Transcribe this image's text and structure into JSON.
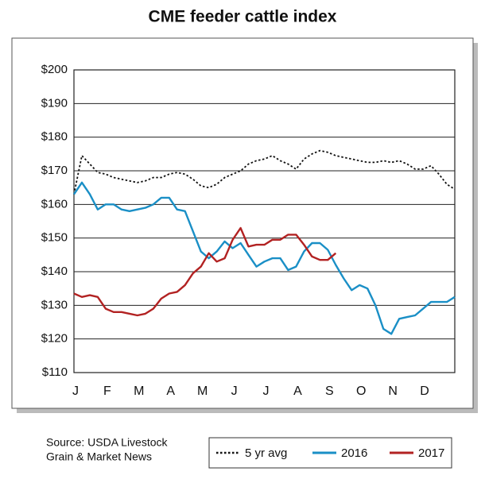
{
  "chart_data": {
    "type": "line",
    "title": "CME feeder cattle index",
    "categories": [
      "J",
      null,
      null,
      null,
      "F",
      null,
      null,
      null,
      "M",
      null,
      null,
      null,
      "A",
      null,
      null,
      null,
      "M",
      null,
      null,
      null,
      "J",
      null,
      null,
      null,
      "J",
      null,
      null,
      null,
      "A",
      null,
      null,
      null,
      "S",
      null,
      null,
      null,
      "O",
      null,
      null,
      null,
      "N",
      null,
      null,
      null,
      "D",
      null,
      null,
      null,
      null
    ],
    "series": [
      {
        "name": "5 yr avg",
        "color": "#111111",
        "dash": "dotted",
        "values": [
          163,
          174.5,
          172,
          169.5,
          169,
          168,
          167.5,
          167,
          166.5,
          167,
          168,
          168,
          169,
          169.5,
          169,
          167.5,
          165.5,
          165,
          166,
          168,
          169,
          170,
          172,
          173,
          173.5,
          174.5,
          173,
          172,
          170.5,
          173.5,
          175,
          176,
          175.5,
          174.5,
          174,
          173.5,
          173,
          172.5,
          172.5,
          173,
          172.5,
          173,
          172,
          170.5,
          170.5,
          171.5,
          169,
          166,
          164.5
        ]
      },
      {
        "name": "2016",
        "color": "#1a8fc6",
        "dash": "solid",
        "values": [
          163,
          166.5,
          163,
          158.5,
          160,
          160,
          158.5,
          158,
          158.5,
          159,
          160,
          162,
          162,
          158.5,
          158,
          152,
          146,
          144,
          146,
          149,
          147,
          148.5,
          145,
          141.5,
          143,
          144,
          144,
          140.5,
          141.5,
          146,
          148.5,
          148.5,
          146.5,
          142,
          138,
          134.5,
          136,
          135,
          130,
          123,
          121.5,
          126,
          126.5,
          127,
          129,
          131,
          131,
          131,
          132.5
        ]
      },
      {
        "name": "2017",
        "color": "#b22222",
        "dash": "solid",
        "values": [
          133.5,
          132.5,
          133,
          132.5,
          129,
          128,
          128,
          127.5,
          127,
          127.5,
          129,
          132,
          133.5,
          134,
          136,
          139.5,
          141.5,
          145.5,
          143,
          144,
          149.5,
          153,
          147.5,
          148,
          148,
          149.5,
          149.5,
          151,
          151,
          148,
          144.5,
          143.5,
          143.5,
          145.5,
          null,
          null,
          null,
          null,
          null,
          null,
          null,
          null,
          null,
          null,
          null,
          null,
          null,
          null,
          null
        ]
      }
    ],
    "ylim": [
      110,
      200
    ],
    "yticks": [
      {
        "value": 110,
        "label": "$110"
      },
      {
        "value": 120,
        "label": "$120"
      },
      {
        "value": 130,
        "label": "$130"
      },
      {
        "value": 140,
        "label": "$140"
      },
      {
        "value": 150,
        "label": "$150"
      },
      {
        "value": 160,
        "label": "$160"
      },
      {
        "value": 170,
        "label": "$170"
      },
      {
        "value": 180,
        "label": "$180"
      },
      {
        "value": 190,
        "label": "$190"
      },
      {
        "value": 200,
        "label": "$200"
      }
    ],
    "grid": true,
    "source": [
      "Source: USDA Livestock",
      "Grain & Market News"
    ]
  }
}
